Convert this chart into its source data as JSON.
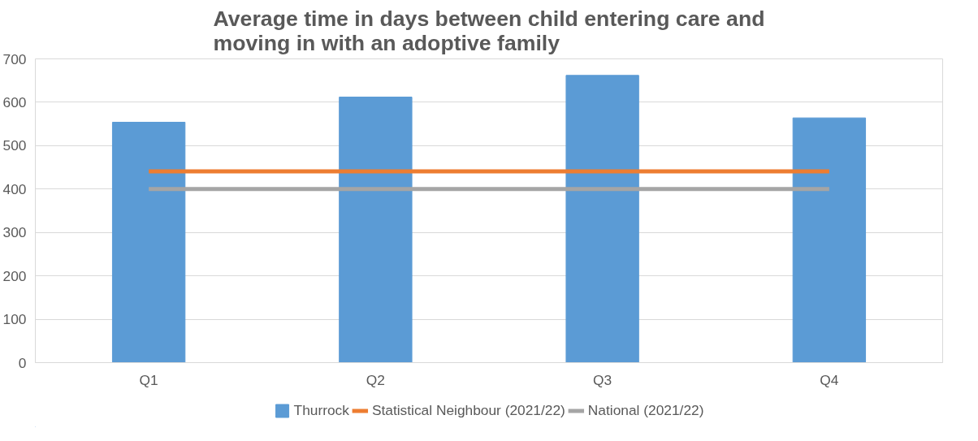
{
  "chart_data": {
    "type": "bar",
    "title": "Average time in days between child entering care and moving in with an adoptive family",
    "categories": [
      "Q1",
      "Q2",
      "Q3",
      "Q4"
    ],
    "series": [
      {
        "name": "Thurrock",
        "color": "#5b9bd5",
        "values": [
          554,
          612,
          662,
          564
        ]
      },
      {
        "name": "Statistical Neighbour (2021/22)",
        "type": "line",
        "color": "#ed7d31",
        "values": [
          441,
          441,
          441,
          441
        ]
      },
      {
        "name": "National (2021/22)",
        "type": "line",
        "color": "#a5a5a5",
        "values": [
          400,
          400,
          400,
          400
        ]
      }
    ],
    "ylim": [
      0,
      700
    ],
    "yticks": [
      0,
      100,
      200,
      300,
      400,
      500,
      600,
      700
    ],
    "grid": "y",
    "legend": "bottom"
  }
}
